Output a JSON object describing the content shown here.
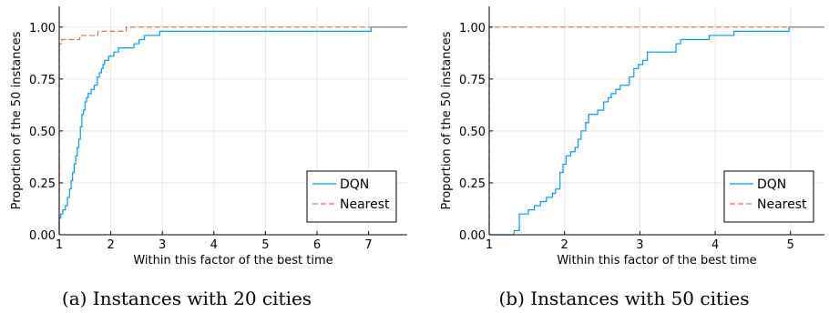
{
  "colors": {
    "dqn": "#009AFA",
    "nearest": "#E26F46"
  },
  "chart_data": [
    {
      "type": "line",
      "step": true,
      "caption": "(a) Instances with 20 cities",
      "xlabel": "Within this factor of the best time",
      "ylabel": "Proportion of the 50 instances",
      "xlim": [
        1,
        7.75
      ],
      "ylim": [
        0,
        1.1
      ],
      "xticks": [
        1,
        2,
        3,
        4,
        5,
        6,
        7
      ],
      "yticks": [
        0.0,
        0.25,
        0.5,
        0.75,
        1.0
      ],
      "ytick_labels": [
        "0.00",
        "0.25",
        "0.50",
        "0.75",
        "1.00"
      ],
      "grid": true,
      "legend_position": "bottom-right",
      "series": [
        {
          "name": "DQN",
          "style": "solid",
          "x": [
            1.0,
            1.03,
            1.07,
            1.12,
            1.16,
            1.2,
            1.23,
            1.26,
            1.29,
            1.32,
            1.35,
            1.38,
            1.41,
            1.44,
            1.47,
            1.5,
            1.53,
            1.56,
            1.59,
            1.62,
            1.68,
            1.74,
            1.78,
            1.82,
            1.85,
            1.88,
            1.92,
            1.96,
            2.0,
            2.06,
            2.15,
            2.45,
            2.55,
            2.65,
            2.75,
            2.95,
            7.05,
            7.75
          ],
          "y": [
            0.08,
            0.1,
            0.12,
            0.14,
            0.18,
            0.22,
            0.26,
            0.3,
            0.34,
            0.38,
            0.42,
            0.46,
            0.52,
            0.58,
            0.6,
            0.64,
            0.66,
            0.68,
            0.68,
            0.7,
            0.72,
            0.76,
            0.78,
            0.8,
            0.82,
            0.84,
            0.84,
            0.86,
            0.86,
            0.88,
            0.9,
            0.92,
            0.94,
            0.96,
            0.96,
            0.98,
            1.0,
            1.0
          ]
        },
        {
          "name": "Nearest",
          "style": "dashed",
          "x": [
            1.0,
            1.05,
            1.25,
            1.4,
            1.55,
            1.75,
            2.0,
            2.3,
            7.75
          ],
          "y": [
            0.92,
            0.94,
            0.94,
            0.96,
            0.96,
            0.98,
            0.98,
            1.0,
            1.0
          ]
        }
      ]
    },
    {
      "type": "line",
      "step": true,
      "caption": "(b) Instances with 50 cities",
      "xlabel": "Within this factor of the best time",
      "ylabel": "Proportion of the 50 instances",
      "xlim": [
        1,
        5.45
      ],
      "ylim": [
        0,
        1.1
      ],
      "xticks": [
        1,
        2,
        3,
        4,
        5
      ],
      "yticks": [
        0.0,
        0.25,
        0.5,
        0.75,
        1.0
      ],
      "ytick_labels": [
        "0.00",
        "0.25",
        "0.50",
        "0.75",
        "1.00"
      ],
      "grid": true,
      "legend_position": "bottom-right",
      "series": [
        {
          "name": "DQN",
          "style": "solid",
          "x": [
            1.0,
            1.33,
            1.4,
            1.46,
            1.52,
            1.6,
            1.68,
            1.76,
            1.84,
            1.88,
            1.94,
            1.98,
            2.02,
            2.08,
            2.14,
            2.18,
            2.22,
            2.28,
            2.32,
            2.38,
            2.44,
            2.52,
            2.58,
            2.62,
            2.68,
            2.74,
            2.82,
            2.86,
            2.92,
            2.98,
            3.04,
            3.1,
            3.48,
            3.54,
            3.58,
            3.92,
            4.25,
            4.98,
            5.45
          ],
          "y": [
            0.0,
            0.02,
            0.1,
            0.1,
            0.12,
            0.14,
            0.16,
            0.18,
            0.2,
            0.22,
            0.3,
            0.34,
            0.38,
            0.4,
            0.42,
            0.46,
            0.5,
            0.54,
            0.58,
            0.58,
            0.6,
            0.64,
            0.66,
            0.68,
            0.7,
            0.72,
            0.72,
            0.76,
            0.8,
            0.82,
            0.84,
            0.88,
            0.92,
            0.94,
            0.94,
            0.96,
            0.98,
            1.0,
            1.0
          ]
        },
        {
          "name": "Nearest",
          "style": "dashed",
          "x": [
            1.0,
            5.45
          ],
          "y": [
            1.0,
            1.0
          ]
        }
      ]
    }
  ]
}
